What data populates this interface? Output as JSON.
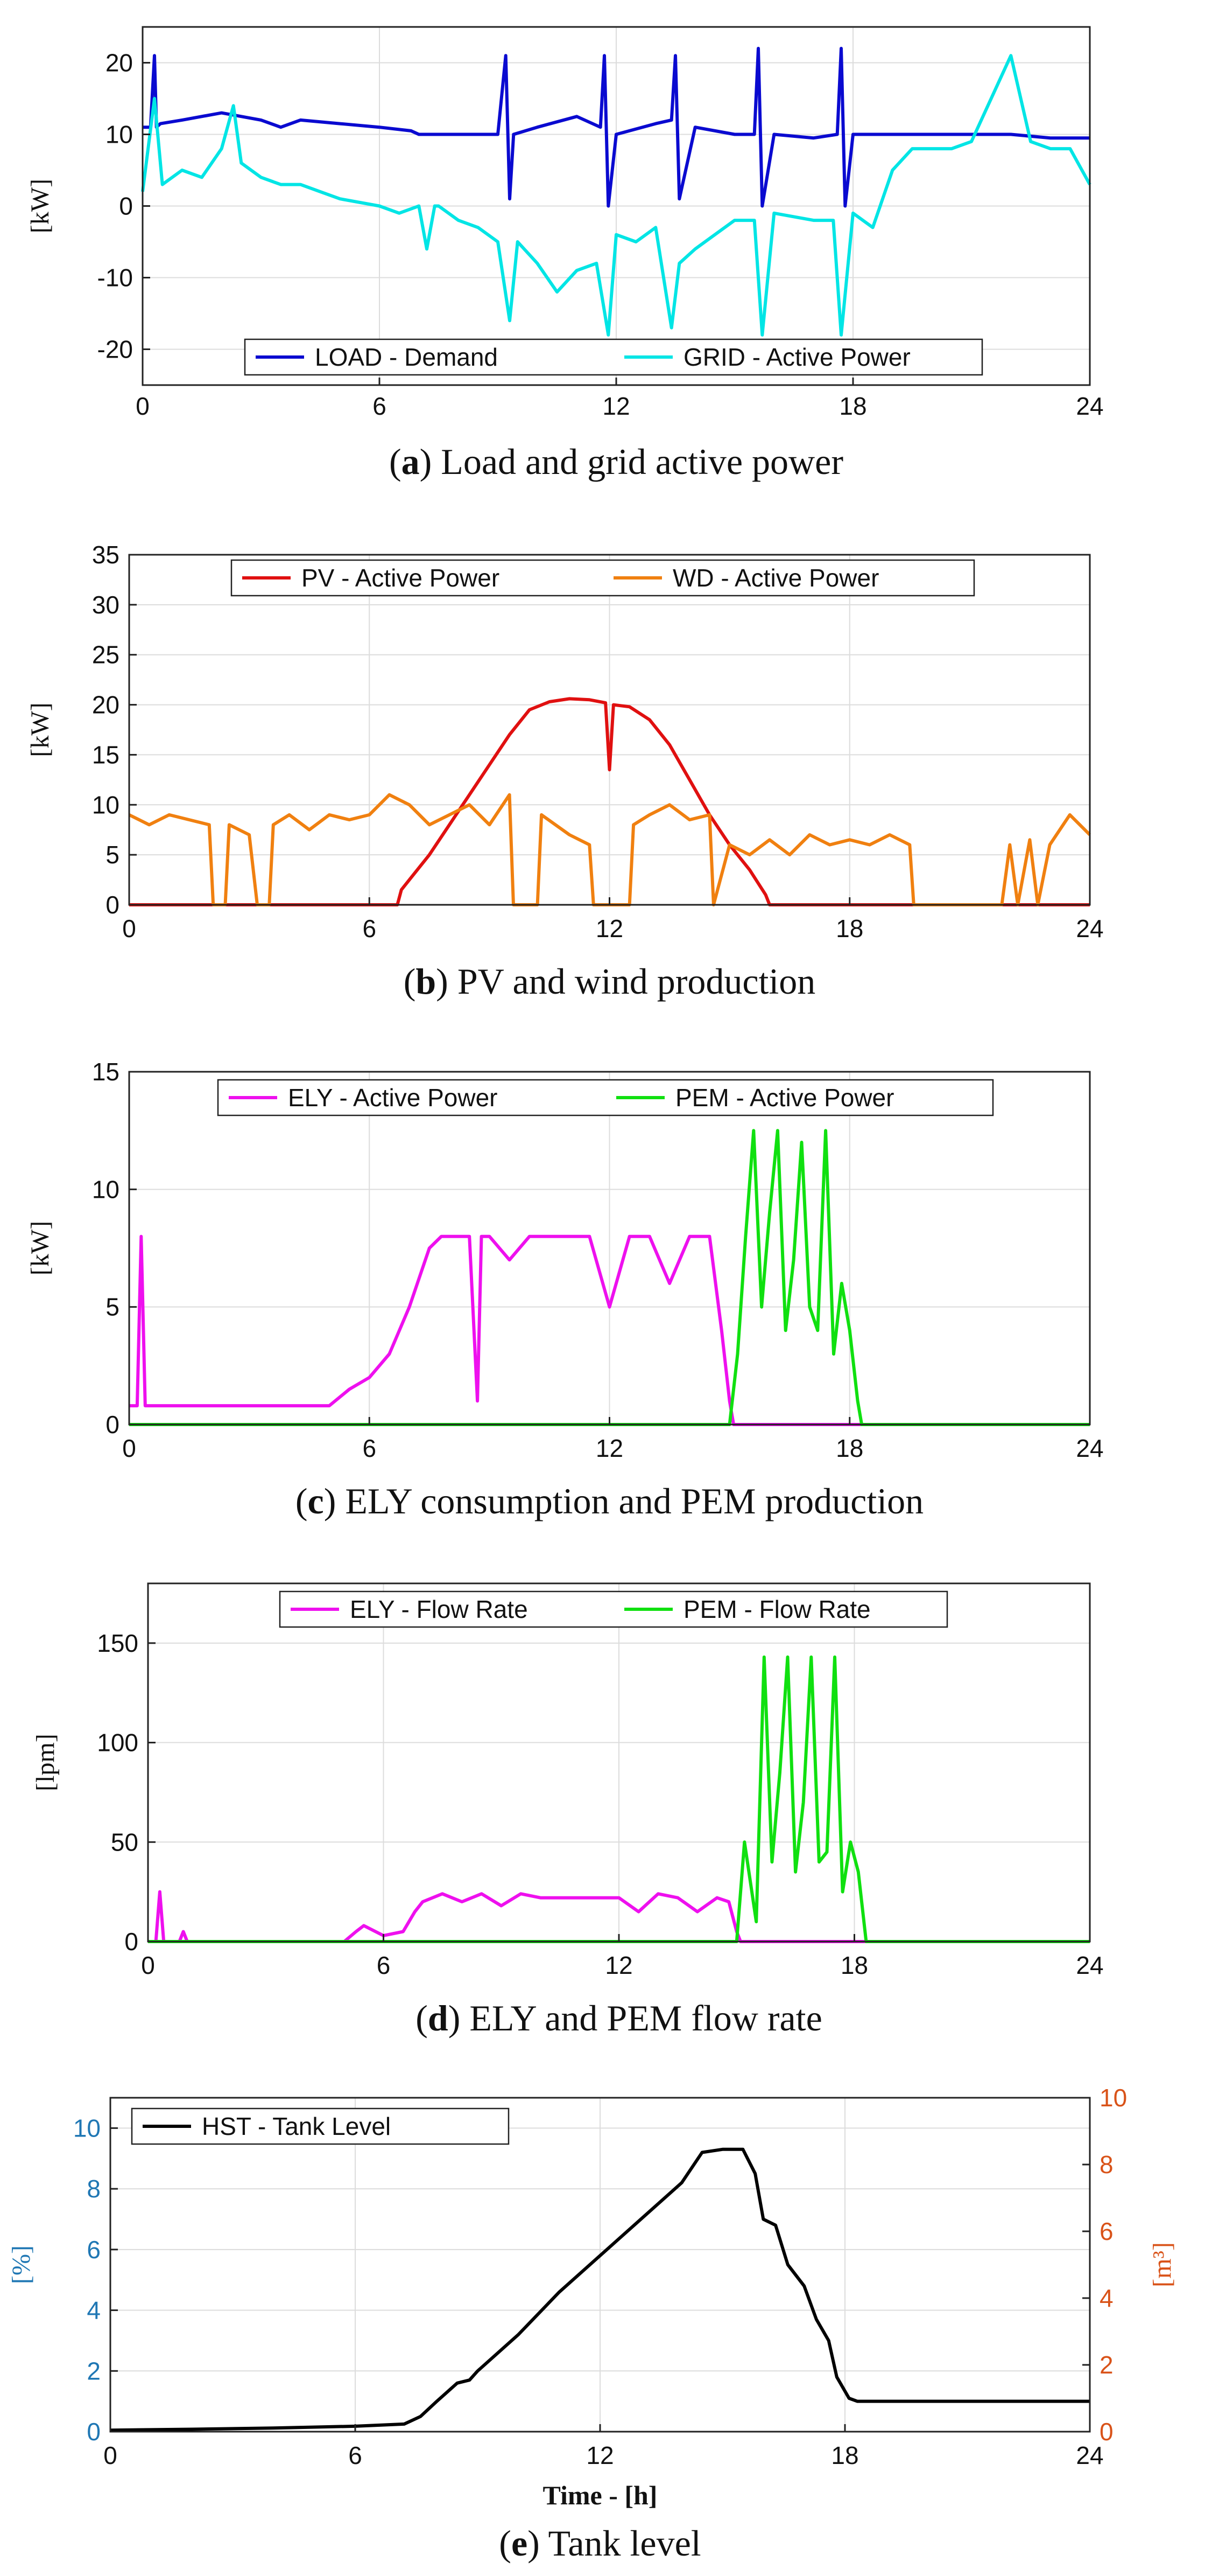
{
  "chart_data": [
    {
      "type": "line",
      "id": "a",
      "caption_letter": "a",
      "caption_text": "Load and grid active power",
      "ylabel": "[kW]",
      "xlabel": "",
      "xlim": [
        0,
        24
      ],
      "ylim": [
        -25,
        25
      ],
      "x_ticks": [
        0,
        6,
        12,
        18,
        24
      ],
      "y_ticks": [
        -20,
        -10,
        0,
        10,
        20
      ],
      "grid": true,
      "legend": "bottom-center",
      "series": [
        {
          "name": "LOAD - Demand",
          "color": "#0a0ad0",
          "x": [
            0,
            0.2,
            0.3,
            0.35,
            0.45,
            1,
            2,
            3,
            3.5,
            4,
            5,
            6,
            6.8,
            7,
            7.5,
            8,
            9,
            9.2,
            9.3,
            9.4,
            10,
            11,
            11.6,
            11.7,
            11.8,
            12,
            13,
            13.4,
            13.5,
            13.6,
            14,
            15,
            15.5,
            15.6,
            15.7,
            16,
            17,
            17.6,
            17.7,
            17.8,
            18,
            19,
            20,
            21,
            22,
            23,
            23.3,
            24
          ],
          "values": [
            11,
            11,
            21,
            11,
            11.5,
            12,
            13,
            12,
            11,
            12,
            11.5,
            11,
            10.5,
            10,
            10,
            10,
            10,
            21,
            1,
            10,
            11,
            12.5,
            11,
            21,
            0,
            10,
            11.5,
            12,
            21,
            1,
            11,
            10,
            10,
            22,
            0,
            10,
            9.5,
            10,
            22,
            0,
            10,
            10,
            10,
            10,
            10,
            9.5,
            9.5,
            9.5
          ]
        },
        {
          "name": "GRID - Active Power",
          "color": "#00e5e5",
          "x": [
            0,
            0.3,
            0.5,
            1,
            1.5,
            2,
            2.3,
            2.5,
            3,
            3.5,
            4,
            4.5,
            5,
            6,
            6.5,
            7,
            7.2,
            7.4,
            7.5,
            8,
            8.5,
            9,
            9.3,
            9.5,
            10,
            10.5,
            11,
            11.5,
            11.8,
            12,
            12.5,
            13,
            13.4,
            13.6,
            14,
            14.5,
            15,
            15.5,
            15.7,
            16,
            17,
            17.5,
            17.7,
            18,
            18.5,
            19,
            19.5,
            20,
            20.5,
            21,
            22,
            22.5,
            23,
            23.5,
            24
          ],
          "values": [
            2,
            15,
            3,
            5,
            4,
            8,
            14,
            6,
            4,
            3,
            3,
            2,
            1,
            0,
            -1,
            0,
            -6,
            0,
            0,
            -2,
            -3,
            -5,
            -16,
            -5,
            -8,
            -12,
            -9,
            -8,
            -18,
            -4,
            -5,
            -3,
            -17,
            -8,
            -6,
            -4,
            -2,
            -2,
            -18,
            -1,
            -2,
            -2,
            -18,
            -1,
            -3,
            5,
            8,
            8,
            8,
            9,
            21,
            9,
            8,
            8,
            3
          ]
        }
      ]
    },
    {
      "type": "line",
      "id": "b",
      "caption_letter": "b",
      "caption_text": "PV and wind production",
      "ylabel": "[kW]",
      "xlabel": "",
      "xlim": [
        0,
        24
      ],
      "ylim": [
        0,
        35
      ],
      "x_ticks": [
        0,
        6,
        12,
        18,
        24
      ],
      "y_ticks": [
        0,
        5,
        10,
        15,
        20,
        25,
        30,
        35
      ],
      "grid": true,
      "legend": "top-center",
      "series": [
        {
          "name": "PV - Active Power",
          "color": "#e01010",
          "x": [
            0,
            6.7,
            6.8,
            7.5,
            8,
            8.5,
            9,
            9.5,
            10,
            10.5,
            11,
            11.5,
            11.9,
            12,
            12.1,
            12.5,
            13,
            13.5,
            14,
            14.5,
            15,
            15.5,
            15.9,
            16,
            24
          ],
          "values": [
            0,
            0,
            1.5,
            5,
            8,
            11,
            14,
            17,
            19.5,
            20.3,
            20.6,
            20.5,
            20.2,
            13.5,
            20,
            19.8,
            18.5,
            16,
            12.5,
            9,
            6,
            3.5,
            1,
            0,
            0
          ]
        },
        {
          "name": "WD - Active Power",
          "color": "#f08010",
          "x": [
            0,
            0.5,
            1,
            1.5,
            2,
            2.1,
            2.4,
            2.5,
            3,
            3.2,
            3.5,
            3.6,
            4,
            4.5,
            5,
            5.5,
            6,
            6.5,
            7,
            7.5,
            8,
            8.5,
            9,
            9.5,
            9.6,
            10.2,
            10.3,
            11,
            11.5,
            11.6,
            12.5,
            12.6,
            13,
            13.5,
            14,
            14.5,
            14.6,
            15,
            15.5,
            16,
            16.5,
            17,
            17.5,
            18,
            18.5,
            19,
            19.5,
            19.6,
            21.8,
            22,
            22.2,
            22.5,
            22.7,
            23,
            23.5,
            24
          ],
          "values": [
            9,
            8,
            9,
            8.5,
            8,
            0,
            0,
            8,
            7,
            0,
            0,
            8,
            9,
            7.5,
            9,
            8.5,
            9,
            11,
            10,
            8,
            9,
            10,
            8,
            11,
            0,
            0,
            9,
            7,
            6,
            0,
            0,
            8,
            9,
            10,
            8.5,
            9,
            0,
            6,
            5,
            6.5,
            5,
            7,
            6,
            6.5,
            6,
            7,
            6,
            0,
            0,
            6,
            0,
            6.5,
            0,
            6,
            9,
            7
          ]
        }
      ]
    },
    {
      "type": "line",
      "id": "c",
      "caption_letter": "c",
      "caption_text": "ELY consumption and PEM production",
      "ylabel": "[kW]",
      "xlabel": "",
      "xlim": [
        0,
        24
      ],
      "ylim": [
        0,
        15
      ],
      "x_ticks": [
        0,
        6,
        12,
        18,
        24
      ],
      "y_ticks": [
        0,
        5,
        10,
        15
      ],
      "grid": true,
      "legend": "top-center",
      "series": [
        {
          "name": "ELY - Active Power",
          "color": "#ee10ee",
          "x": [
            0,
            0.2,
            0.3,
            0.4,
            0.5,
            1,
            2,
            3,
            4,
            5,
            5.5,
            6,
            6.5,
            7,
            7.3,
            7.5,
            7.8,
            8,
            8.5,
            8.7,
            8.8,
            9,
            9.5,
            10,
            10.5,
            11,
            11.5,
            12,
            12.5,
            13,
            13.5,
            14,
            14.5,
            14.8,
            15,
            15.1,
            24
          ],
          "values": [
            0.8,
            0.8,
            8,
            0.8,
            0.8,
            0.8,
            0.8,
            0.8,
            0.8,
            0.8,
            1.5,
            2,
            3,
            5,
            6.5,
            7.5,
            8,
            8,
            8,
            1,
            8,
            8,
            7,
            8,
            8,
            8,
            8,
            5,
            8,
            8,
            6,
            8,
            8,
            4,
            1,
            0,
            0
          ]
        },
        {
          "name": "PEM - Active Power",
          "color": "#10e010",
          "x": [
            0,
            15,
            15.2,
            15.4,
            15.6,
            15.8,
            16,
            16.2,
            16.4,
            16.6,
            16.8,
            17,
            17.2,
            17.4,
            17.6,
            17.8,
            18,
            18.2,
            18.3,
            24
          ],
          "values": [
            0,
            0,
            3,
            8,
            12.5,
            5,
            9,
            12.5,
            4,
            7,
            12,
            5,
            4,
            12.5,
            3,
            6,
            4,
            1,
            0,
            0
          ]
        }
      ]
    },
    {
      "type": "line",
      "id": "d",
      "caption_letter": "d",
      "caption_text": "ELY and PEM flow rate",
      "ylabel": "[lpm]",
      "xlabel": "",
      "xlim": [
        0,
        24
      ],
      "ylim": [
        0,
        180
      ],
      "x_ticks": [
        0,
        6,
        12,
        18,
        24
      ],
      "y_ticks": [
        0,
        50,
        100,
        150
      ],
      "grid": true,
      "legend": "top-center",
      "series": [
        {
          "name": "ELY - Flow Rate",
          "color": "#ee10ee",
          "x": [
            0,
            0.2,
            0.3,
            0.4,
            0.8,
            0.9,
            1,
            5,
            5.3,
            5.5,
            6,
            6.5,
            6.8,
            7,
            7.5,
            8,
            8.5,
            9,
            9.5,
            10,
            10.5,
            11,
            11.5,
            12,
            12.5,
            13,
            13.5,
            14,
            14.5,
            14.8,
            15,
            15.1,
            24
          ],
          "values": [
            0,
            0,
            25,
            0,
            0,
            5,
            0,
            0,
            5,
            8,
            3,
            5,
            15,
            20,
            24,
            20,
            24,
            18,
            24,
            22,
            22,
            22,
            22,
            22,
            15,
            24,
            22,
            15,
            22,
            20,
            5,
            0,
            0
          ]
        },
        {
          "name": "PEM - Flow Rate",
          "color": "#10e010",
          "x": [
            0,
            15,
            15.2,
            15.5,
            15.7,
            15.9,
            16.1,
            16.3,
            16.5,
            16.7,
            16.9,
            17.1,
            17.3,
            17.5,
            17.7,
            17.9,
            18.1,
            18.3,
            24
          ],
          "values": [
            0,
            0,
            50,
            10,
            143,
            40,
            85,
            143,
            35,
            70,
            143,
            40,
            45,
            143,
            25,
            50,
            35,
            0,
            0
          ]
        }
      ]
    },
    {
      "type": "line",
      "id": "e",
      "caption_letter": "e",
      "caption_text": "Tank level",
      "ylabel": "[%]",
      "ylabel_right": "[m³]",
      "xlabel": "Time - [h]",
      "xlim": [
        0,
        24
      ],
      "ylim": [
        0,
        11
      ],
      "ylim_right": [
        0,
        10
      ],
      "x_ticks": [
        0,
        6,
        12,
        18,
        24
      ],
      "y_ticks": [
        0,
        2,
        4,
        6,
        8,
        10
      ],
      "y_ticks_right": [
        0,
        2,
        4,
        6,
        8,
        10
      ],
      "left_axis_color": "#1f77b4",
      "right_axis_color": "#d95319",
      "grid": true,
      "legend": "top-left",
      "series": [
        {
          "name": "HST - Tank Level",
          "color": "#000000",
          "x": [
            0,
            2,
            4,
            6,
            7.2,
            7.6,
            8,
            8.5,
            8.8,
            9,
            10,
            11,
            12,
            13,
            14,
            14.5,
            15,
            15.5,
            15.8,
            16,
            16.3,
            16.6,
            17,
            17.3,
            17.6,
            17.8,
            18.1,
            18.3,
            20,
            22,
            24
          ],
          "values": [
            0.05,
            0.08,
            0.12,
            0.18,
            0.25,
            0.5,
            1.0,
            1.6,
            1.7,
            2.0,
            3.2,
            4.6,
            5.8,
            7.0,
            8.2,
            9.2,
            9.3,
            9.3,
            8.5,
            7.0,
            6.8,
            5.5,
            4.8,
            3.7,
            3.0,
            1.8,
            1.1,
            1.0,
            1.0,
            1.0,
            1.0
          ]
        }
      ]
    }
  ]
}
